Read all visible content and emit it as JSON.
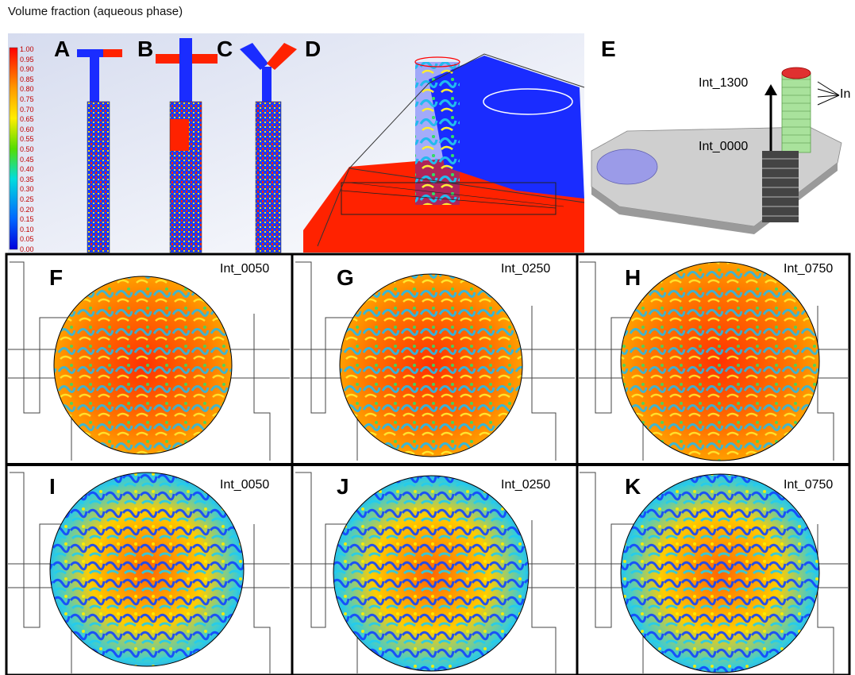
{
  "title": "Volume fraction (aqueous phase)",
  "legend": {
    "ticks": [
      "1.00",
      "0.95",
      "0.90",
      "0.85",
      "0.80",
      "0.75",
      "0.70",
      "0.65",
      "0.60",
      "0.55",
      "0.50",
      "0.45",
      "0.40",
      "0.35",
      "0.30",
      "0.25",
      "0.20",
      "0.15",
      "0.10",
      "0.05",
      "0.00"
    ],
    "colors": [
      "#ff0000",
      "#ff8800",
      "#ffee00",
      "#66dd00",
      "#00dddd",
      "#0066ff",
      "#0000ee"
    ]
  },
  "panels": {
    "A": "A",
    "B": "B",
    "C": "C",
    "D": "D",
    "E": "E",
    "F": "F",
    "G": "G",
    "H": "H",
    "I": "I",
    "J": "J",
    "K": "K"
  },
  "e_labels": {
    "top": "Int_1300",
    "bottom": "Int_0000",
    "side": "In"
  },
  "grid_labels": {
    "F": "Int_0050",
    "G": "Int_0250",
    "H": "Int_0750",
    "I": "Int_0050",
    "J": "Int_0250",
    "K": "Int_0750"
  }
}
